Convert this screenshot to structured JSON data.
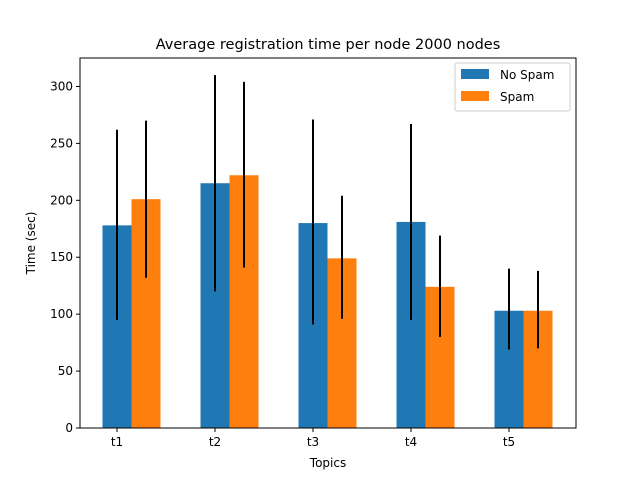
{
  "chart_data": {
    "type": "bar",
    "title": "Average registration time per node 2000 nodes",
    "xlabel": "Topics",
    "ylabel": "Time (sec)",
    "categories": [
      "t1",
      "t2",
      "t3",
      "t4",
      "t5"
    ],
    "ylim": [
      0,
      325
    ],
    "yticks": [
      0,
      50,
      100,
      150,
      200,
      250,
      300
    ],
    "grid": false,
    "legend_position": "top-right",
    "series": [
      {
        "name": "No Spam",
        "color": "#1f77b4",
        "values": [
          178,
          215,
          180,
          181,
          103
        ],
        "error_low": [
          95,
          120,
          91,
          95,
          69
        ],
        "error_high": [
          262,
          310,
          271,
          267,
          140
        ]
      },
      {
        "name": "Spam",
        "color": "#ff7f0e",
        "values": [
          201,
          222,
          149,
          124,
          103
        ],
        "error_low": [
          132,
          141,
          96,
          80,
          70
        ],
        "error_high": [
          270,
          304,
          204,
          169,
          138
        ]
      }
    ]
  }
}
